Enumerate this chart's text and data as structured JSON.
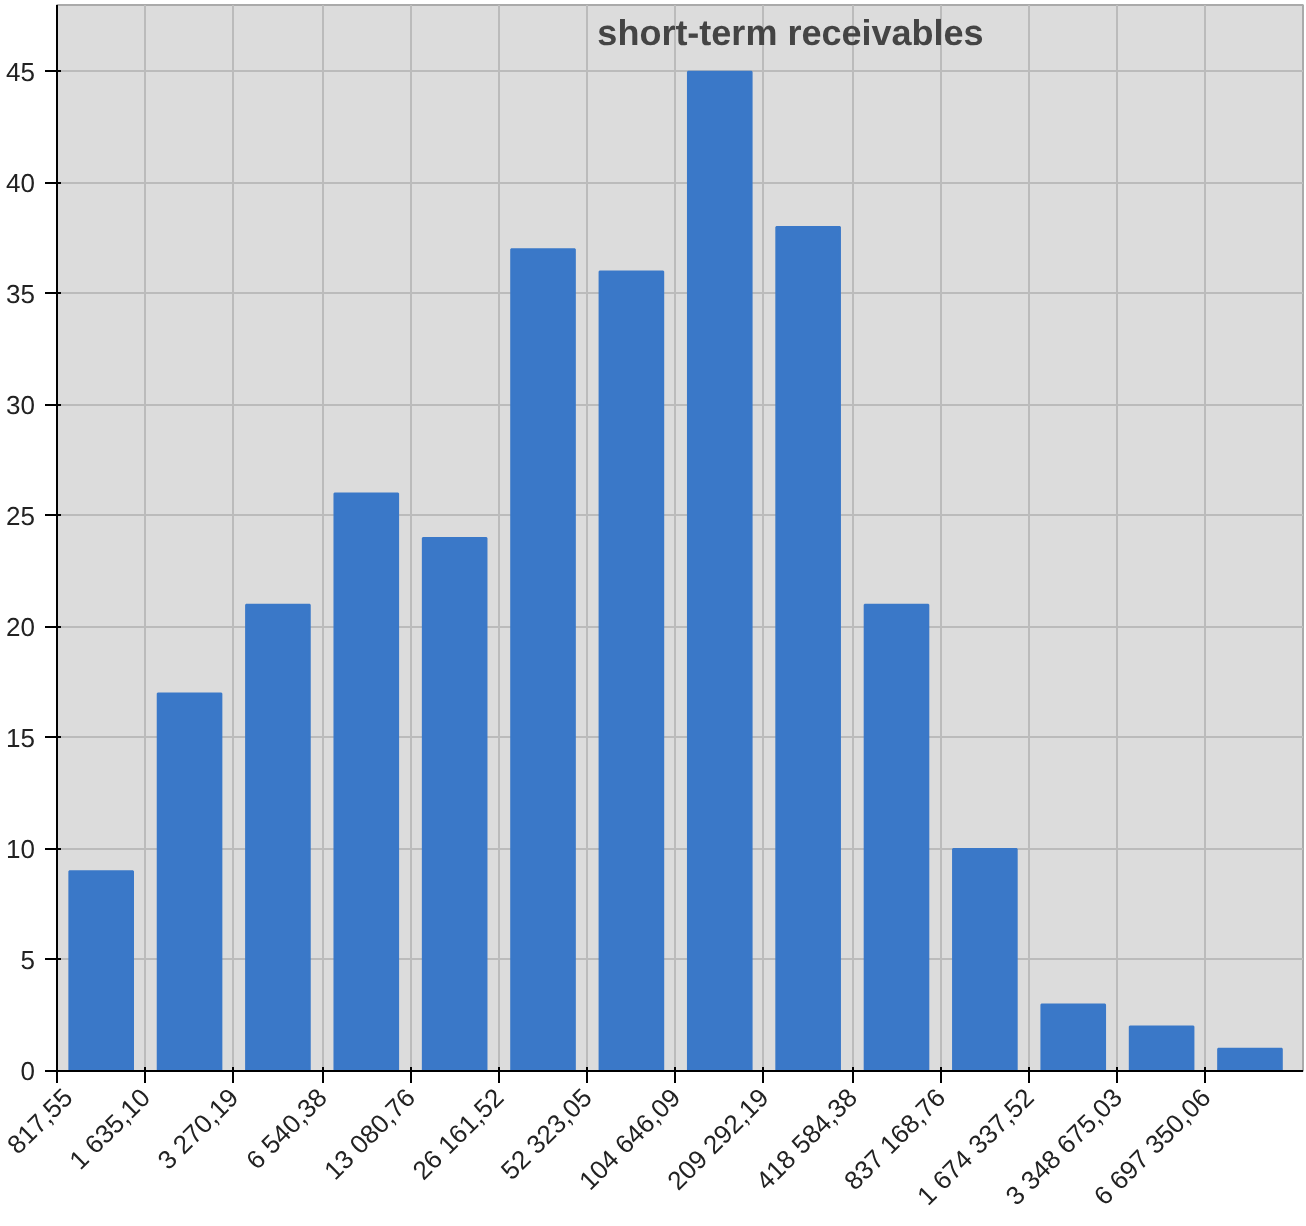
{
  "chart_data": {
    "type": "bar",
    "title": "short-term receivables",
    "categories": [
      "817,55",
      "1 635,10",
      "3 270,19",
      "6 540,38",
      "13 080,76",
      "26 161,52",
      "52 323,05",
      "104 646,09",
      "209 292,19",
      "418 584,38",
      "837 168,76",
      "1 674 337,52",
      "3 348 675,03",
      "6 697 350,06"
    ],
    "values": [
      9,
      17,
      21,
      26,
      24,
      37,
      36,
      45,
      38,
      21,
      10,
      3,
      2,
      1
    ],
    "color": "#3a78c8",
    "ylim": [
      0,
      48
    ],
    "yticks": [
      0,
      5,
      10,
      15,
      20,
      25,
      30,
      35,
      40,
      45
    ],
    "grid": true
  }
}
